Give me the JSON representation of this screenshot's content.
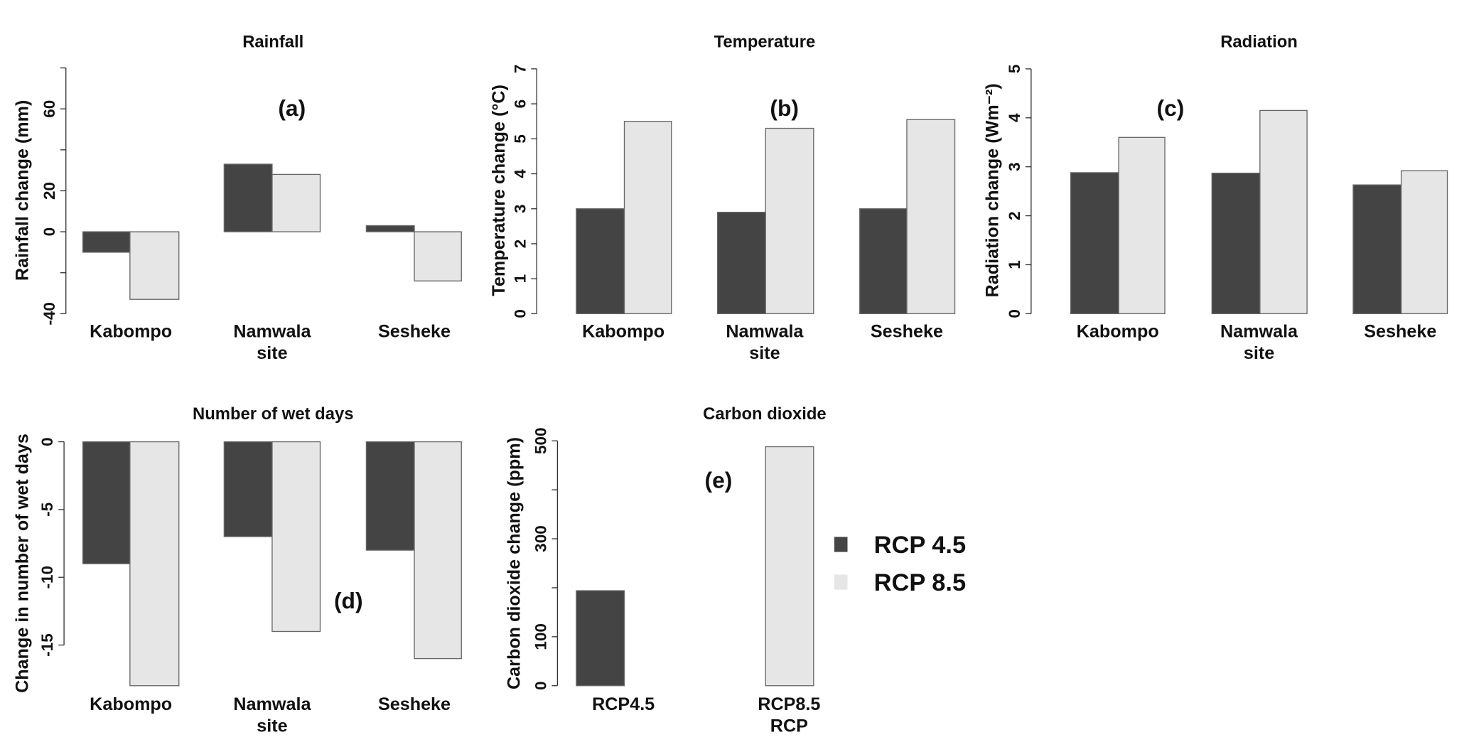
{
  "legend": [
    {
      "label": "RCP 4.5",
      "color": "#444444"
    },
    {
      "label": "RCP 8.5",
      "color": "#e6e6e6"
    }
  ],
  "chart_data": [
    {
      "type": "bar",
      "panel": "(a)",
      "title": "Rainfall",
      "ylabel": "Rainfall change (mm)",
      "xlabel": "site",
      "categories": [
        "Kabompo",
        "Namwala",
        "Sesheke"
      ],
      "series": [
        {
          "name": "RCP 4.5",
          "values": [
            -10,
            33,
            3
          ]
        },
        {
          "name": "RCP 8.5",
          "values": [
            -33,
            28,
            -24
          ]
        }
      ],
      "ylim": [
        -40,
        80
      ],
      "yticks": [
        -40,
        -20,
        0,
        20,
        40,
        60,
        80
      ],
      "ytick_labels": [
        "-40",
        "",
        "0",
        "20",
        "",
        "60",
        ""
      ]
    },
    {
      "type": "bar",
      "panel": "(b)",
      "title": "Temperature",
      "ylabel": "Temperature change (°C)",
      "xlabel": "site",
      "categories": [
        "Kabompo",
        "Namwala",
        "Sesheke"
      ],
      "series": [
        {
          "name": "RCP 4.5",
          "values": [
            3.0,
            2.9,
            3.0
          ]
        },
        {
          "name": "RCP 8.5",
          "values": [
            5.5,
            5.3,
            5.55
          ]
        }
      ],
      "ylim": [
        0,
        7
      ],
      "yticks": [
        0,
        1,
        2,
        3,
        4,
        5,
        6,
        7
      ],
      "ytick_labels": [
        "0",
        "1",
        "2",
        "3",
        "4",
        "5",
        "6",
        "7"
      ]
    },
    {
      "type": "bar",
      "panel": "(c)",
      "title": "Radiation",
      "ylabel": "Radiation change (Wm⁻²)",
      "xlabel": "site",
      "categories": [
        "Kabompo",
        "Namwala",
        "Sesheke"
      ],
      "series": [
        {
          "name": "RCP 4.5",
          "values": [
            2.88,
            2.87,
            2.63
          ]
        },
        {
          "name": "RCP 8.5",
          "values": [
            3.6,
            4.15,
            2.92
          ]
        }
      ],
      "ylim": [
        0,
        5
      ],
      "yticks": [
        0,
        1,
        2,
        3,
        4,
        5
      ],
      "ytick_labels": [
        "0",
        "1",
        "2",
        "3",
        "4",
        "5"
      ]
    },
    {
      "type": "bar",
      "panel": "(d)",
      "title": "Number of wet days",
      "ylabel": "Change in number of wet days",
      "xlabel": "site",
      "categories": [
        "Kabompo",
        "Namwala",
        "Sesheke"
      ],
      "series": [
        {
          "name": "RCP 4.5",
          "values": [
            -9,
            -7,
            -8
          ]
        },
        {
          "name": "RCP 8.5",
          "values": [
            -18,
            -14,
            -16
          ]
        }
      ],
      "ylim": [
        -18,
        0
      ],
      "yticks": [
        -15,
        -10,
        -5,
        0
      ],
      "ytick_labels": [
        "-15",
        "-10",
        "-5",
        "0"
      ]
    },
    {
      "type": "bar",
      "panel": "(e)",
      "title": "Carbon dioxide",
      "ylabel": "Carbon dioxide change (ppm)",
      "xlabel": "RCP",
      "categories": [
        "RCP4.5",
        "RCP8.5"
      ],
      "series": [
        {
          "name": "CO2",
          "values": [
            194,
            488
          ]
        }
      ],
      "ylim": [
        0,
        500
      ],
      "yticks": [
        0,
        100,
        200,
        300,
        400,
        500
      ],
      "ytick_labels": [
        "0",
        "100",
        "",
        "300",
        "",
        "500"
      ]
    }
  ]
}
